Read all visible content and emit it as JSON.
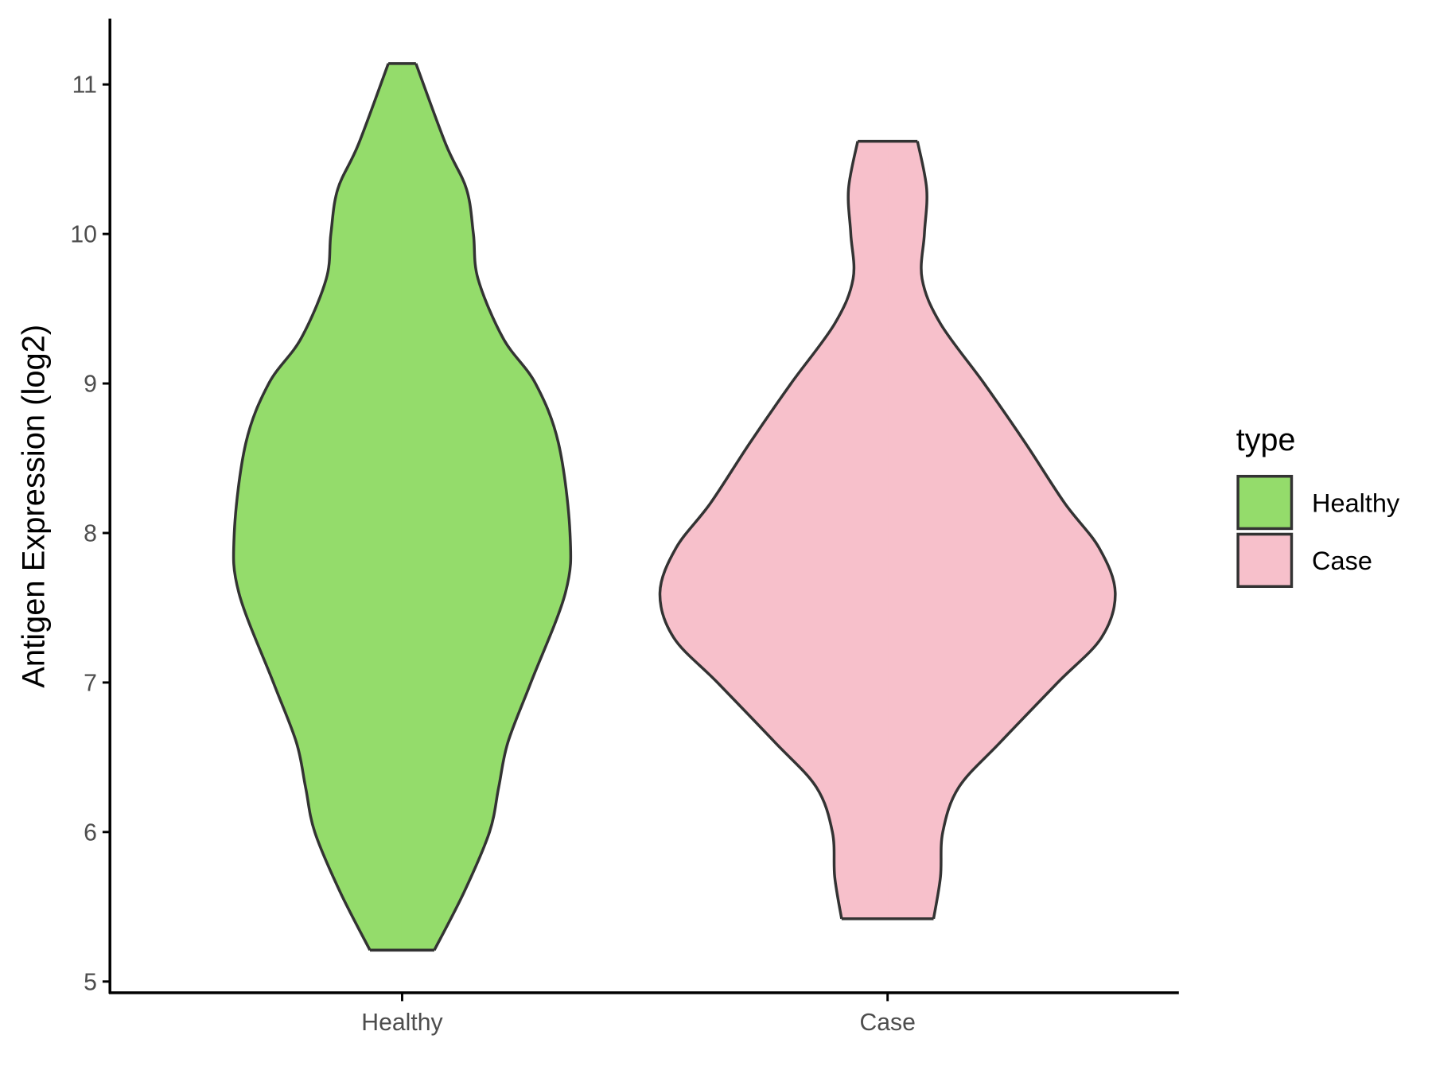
{
  "chart_data": {
    "type": "violin",
    "ylabel": "Antigen Expression (log2)",
    "categories": [
      "Healthy",
      "Case"
    ],
    "legend_title": "type",
    "legend_position": "right",
    "series": [
      {
        "name": "Healthy",
        "color": "#94dc6b",
        "y": [
          11.14,
          10.6,
          10.3,
          10.0,
          9.7,
          9.3,
          9.0,
          8.6,
          8.0,
          7.6,
          7.0,
          6.6,
          6.3,
          6.0,
          5.6,
          5.21
        ],
        "width": [
          0.06,
          0.19,
          0.28,
          0.31,
          0.33,
          0.44,
          0.58,
          0.68,
          0.73,
          0.71,
          0.56,
          0.46,
          0.42,
          0.38,
          0.27,
          0.14
        ]
      },
      {
        "name": "Case",
        "color": "#f7c0cb",
        "y": [
          10.62,
          10.3,
          10.0,
          9.7,
          9.4,
          9.0,
          8.6,
          8.2,
          7.9,
          7.6,
          7.3,
          7.0,
          6.6,
          6.3,
          6.0,
          5.7,
          5.42
        ],
        "width": [
          0.13,
          0.17,
          0.16,
          0.15,
          0.23,
          0.42,
          0.6,
          0.77,
          0.92,
          0.99,
          0.93,
          0.74,
          0.49,
          0.31,
          0.24,
          0.23,
          0.2
        ]
      }
    ],
    "ylim": [
      4.925,
      11.44
    ],
    "yticks": [
      5,
      6,
      7,
      8,
      9,
      10,
      11
    ]
  }
}
